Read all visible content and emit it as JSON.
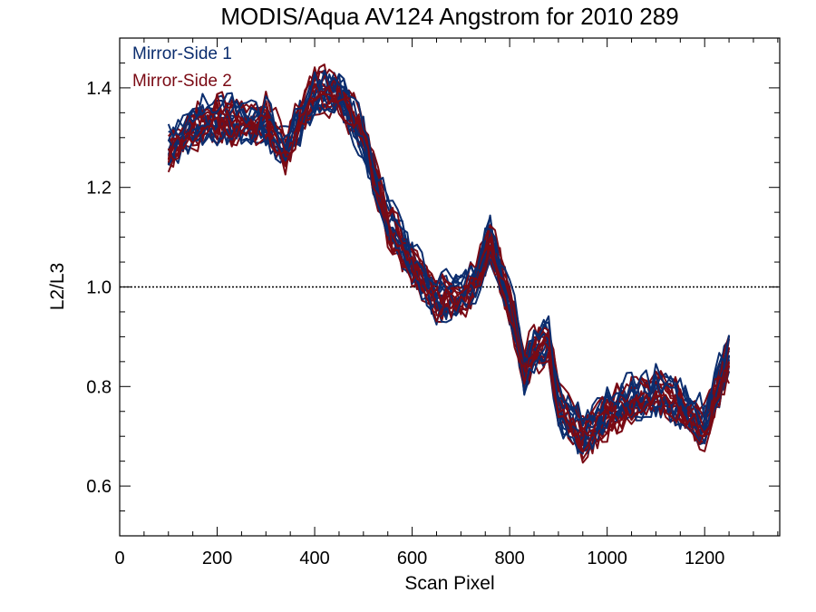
{
  "chart_data": {
    "type": "line",
    "title": "MODIS/Aqua AV124 Angstrom for 2010 289",
    "xlabel": "Scan Pixel",
    "ylabel": "L2/L3",
    "xlim": [
      0,
      1354
    ],
    "ylim": [
      0.5,
      1.5
    ],
    "x_ticks": [
      0,
      200,
      400,
      600,
      800,
      1000,
      1200
    ],
    "x_tick_labels": [
      "0",
      "200",
      "400",
      "600",
      "800",
      "1000",
      "1200"
    ],
    "y_ticks": [
      0.6,
      0.8,
      1.0,
      1.2,
      1.4
    ],
    "y_tick_labels": [
      "0.6",
      "0.8",
      "1.0",
      "1.2",
      "1.4"
    ],
    "reference_line": {
      "y": 1.0,
      "style": "dotted"
    },
    "grid": false,
    "legend_position": "top-left",
    "x": [
      100,
      150,
      200,
      250,
      300,
      340,
      400,
      450,
      500,
      550,
      600,
      650,
      700,
      730,
      760,
      800,
      830,
      850,
      880,
      900,
      950,
      1000,
      1050,
      1100,
      1150,
      1200,
      1250
    ],
    "series": [
      {
        "name": "Mirror-Side 1",
        "color": "#0b2d6e",
        "values": [
          1.28,
          1.33,
          1.34,
          1.34,
          1.33,
          1.28,
          1.39,
          1.4,
          1.3,
          1.14,
          1.06,
          0.98,
          0.99,
          1.02,
          1.1,
          0.98,
          0.83,
          0.88,
          0.9,
          0.76,
          0.71,
          0.75,
          0.78,
          0.79,
          0.77,
          0.73,
          0.87
        ]
      },
      {
        "name": "Mirror-Side 2",
        "color": "#7a0a14",
        "values": [
          1.27,
          1.32,
          1.34,
          1.33,
          1.34,
          1.27,
          1.4,
          1.39,
          1.31,
          1.13,
          1.05,
          0.98,
          0.98,
          1.01,
          1.09,
          0.97,
          0.84,
          0.87,
          0.89,
          0.77,
          0.7,
          0.74,
          0.77,
          0.8,
          0.76,
          0.72,
          0.86
        ]
      }
    ],
    "traces_per_series": 12
  }
}
